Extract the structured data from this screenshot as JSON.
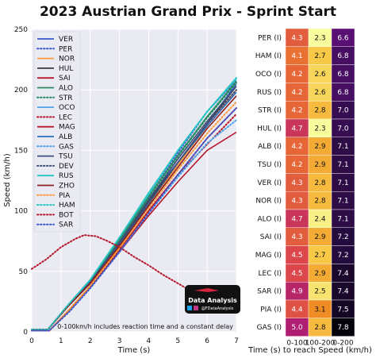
{
  "title": "2023 Austrian Grand Prix - Sprint Start",
  "chart_data": [
    {
      "type": "line",
      "xlabel": "Time (s)",
      "ylabel": "Speed (km/h)",
      "xlim": [
        0,
        7
      ],
      "ylim": [
        0,
        250
      ],
      "xticks": [
        "0",
        "1",
        "2",
        "3",
        "4",
        "5",
        "6",
        "7"
      ],
      "yticks": [
        "0",
        "50",
        "100",
        "150",
        "200",
        "250"
      ],
      "grid": true,
      "legend_position": "top-left",
      "annotation": "0-100km/h includes reaction time and a constant delay",
      "series": [
        {
          "name": "VER",
          "color": "#3a57d0",
          "dash": "solid",
          "x": [
            0,
            0.55,
            1.2,
            2,
            3,
            4,
            5,
            6,
            7
          ],
          "y": [
            2,
            2,
            20,
            42,
            75,
            110,
            140,
            172,
            205
          ]
        },
        {
          "name": "PER",
          "color": "#3a57d0",
          "dash": "dotted",
          "x": [
            0,
            0.55,
            1.2,
            2,
            3,
            4,
            5,
            6,
            7
          ],
          "y": [
            2,
            2,
            21,
            43,
            77,
            114,
            148,
            182,
            208
          ]
        },
        {
          "name": "NOR",
          "color": "#ff9a3c",
          "dash": "solid",
          "x": [
            0,
            0.6,
            1.3,
            2,
            3,
            4,
            5,
            6,
            7
          ],
          "y": [
            1,
            1,
            19,
            38,
            70,
            105,
            138,
            170,
            200
          ]
        },
        {
          "name": "HUL",
          "color": "#3a3a3a",
          "dash": "solid",
          "x": [
            0,
            0.55,
            1.2,
            2,
            3,
            4,
            5,
            6,
            7
          ],
          "y": [
            2,
            2,
            20,
            41,
            73,
            108,
            140,
            172,
            203
          ]
        },
        {
          "name": "SAI",
          "color": "#b5172b",
          "dash": "solid",
          "x": [
            0,
            0.6,
            1.3,
            2,
            3,
            4,
            5,
            6,
            7
          ],
          "y": [
            1,
            1,
            18,
            37,
            68,
            100,
            130,
            160,
            185
          ]
        },
        {
          "name": "ALO",
          "color": "#2a8a63",
          "dash": "solid",
          "x": [
            0,
            0.55,
            1.2,
            2,
            3,
            4,
            5,
            6,
            7
          ],
          "y": [
            2,
            2,
            20,
            42,
            76,
            112,
            146,
            178,
            207
          ]
        },
        {
          "name": "STR",
          "color": "#2a8a63",
          "dash": "dotted",
          "x": [
            0,
            0.55,
            1.2,
            2,
            3,
            4,
            5,
            6,
            7
          ],
          "y": [
            2,
            2,
            21,
            42,
            75,
            111,
            145,
            177,
            206
          ]
        },
        {
          "name": "OCO",
          "color": "#4fa3e8",
          "dash": "solid",
          "x": [
            0,
            0.55,
            1.2,
            2,
            3,
            4,
            5,
            6,
            7
          ],
          "y": [
            2,
            2,
            21,
            43,
            78,
            114,
            150,
            182,
            210
          ]
        },
        {
          "name": "LEC",
          "color": "#b5172b",
          "dash": "dotted",
          "x": [
            0,
            0.6,
            1.3,
            2,
            3,
            4,
            5,
            6,
            7
          ],
          "y": [
            1,
            1,
            18,
            37,
            67,
            100,
            130,
            155,
            180
          ]
        },
        {
          "name": "MAG",
          "color": "#b5172b",
          "dash": "solid",
          "x": [
            0,
            0.6,
            1.3,
            2,
            3,
            4,
            5,
            6,
            7
          ],
          "y": [
            1,
            1,
            18,
            37,
            66,
            96,
            124,
            150,
            165
          ]
        },
        {
          "name": "ALB",
          "color": "#2b6fc0",
          "dash": "solid",
          "x": [
            0,
            0.55,
            1.2,
            2,
            3,
            4,
            5,
            6,
            7
          ],
          "y": [
            2,
            2,
            20,
            40,
            72,
            106,
            140,
            170,
            198
          ]
        },
        {
          "name": "GAS",
          "color": "#4fa3e8",
          "dash": "dotted",
          "x": [
            0,
            0.6,
            1.3,
            2,
            3,
            4,
            5,
            6,
            7
          ],
          "y": [
            1,
            1,
            17,
            36,
            66,
            98,
            128,
            156,
            175
          ]
        },
        {
          "name": "TSU",
          "color": "#3d4f7a",
          "dash": "solid",
          "x": [
            0,
            0.55,
            1.2,
            2,
            3,
            4,
            5,
            6,
            7
          ],
          "y": [
            2,
            2,
            20,
            41,
            74,
            109,
            143,
            174,
            203
          ]
        },
        {
          "name": "DEV",
          "color": "#3d4f7a",
          "dash": "dotted",
          "x": [
            0,
            0.55,
            1.2,
            2,
            3,
            4,
            5,
            6,
            7
          ],
          "y": [
            2,
            2,
            20,
            40,
            72,
            106,
            140,
            172,
            200
          ]
        },
        {
          "name": "RUS",
          "color": "#24c7c1",
          "dash": "solid",
          "x": [
            0,
            0.55,
            1.2,
            2,
            3,
            4,
            5,
            6,
            7
          ],
          "y": [
            2,
            2,
            21,
            43,
            78,
            115,
            150,
            182,
            209
          ]
        },
        {
          "name": "ZHO",
          "color": "#8a1f1f",
          "dash": "solid",
          "x": [
            0,
            0.55,
            1.2,
            2,
            3,
            4,
            5,
            6,
            7
          ],
          "y": [
            2,
            2,
            20,
            40,
            71,
            104,
            136,
            168,
            195
          ]
        },
        {
          "name": "PIA",
          "color": "#ff9a3c",
          "dash": "dotted",
          "x": [
            0,
            0.6,
            1.3,
            2,
            3,
            4,
            5,
            6,
            7
          ],
          "y": [
            1,
            1,
            18,
            38,
            69,
            102,
            134,
            164,
            190
          ]
        },
        {
          "name": "HAM",
          "color": "#24c7c1",
          "dash": "dotted",
          "x": [
            0,
            0.55,
            1.2,
            2,
            3,
            4,
            5,
            6,
            7
          ],
          "y": [
            2,
            2,
            21,
            43,
            78,
            114,
            150,
            182,
            210
          ]
        },
        {
          "name": "BOT",
          "color": "#b5172b",
          "dash": "dotted",
          "x": [
            0,
            0.5,
            1,
            1.5,
            1.8,
            2.2,
            2.6,
            3,
            3.5,
            4,
            4.5,
            5,
            5.5,
            6,
            6.4
          ],
          "y": [
            52,
            60,
            70,
            77,
            80,
            79,
            75,
            70,
            62,
            55,
            47,
            40,
            33,
            27,
            25
          ]
        },
        {
          "name": "SAR",
          "color": "#3a57d0",
          "dash": "dotted",
          "x": [
            0,
            0.6,
            1.3,
            2,
            3,
            4,
            5,
            6,
            7
          ],
          "y": [
            1,
            1,
            17,
            36,
            66,
            98,
            130,
            160,
            185
          ]
        }
      ]
    },
    {
      "type": "heatmap",
      "xlabel": "Time (s) to reach Speed (km/h)",
      "columns": [
        "0-100",
        "100-200",
        "0-200"
      ],
      "rows": [
        "PER (I)",
        "HAM (I)",
        "OCO (I)",
        "RUS (I)",
        "STR (I)",
        "HUL (I)",
        "ALB (I)",
        "TSU (I)",
        "VER (I)",
        "NOR (I)",
        "ALO (I)",
        "SAI (I)",
        "MAG (I)",
        "LEC (I)",
        "SAR (I)",
        "PIA (I)",
        "GAS (I)"
      ],
      "values": [
        [
          "4.3",
          "2.3",
          "6.6"
        ],
        [
          "4.1",
          "2.7",
          "6.8"
        ],
        [
          "4.2",
          "2.6",
          "6.8"
        ],
        [
          "4.2",
          "2.6",
          "6.8"
        ],
        [
          "4.2",
          "2.8",
          "7.0"
        ],
        [
          "4.7",
          "2.3",
          "7.0"
        ],
        [
          "4.2",
          "2.9",
          "7.1"
        ],
        [
          "4.2",
          "2.9",
          "7.1"
        ],
        [
          "4.3",
          "2.8",
          "7.1"
        ],
        [
          "4.3",
          "2.8",
          "7.1"
        ],
        [
          "4.7",
          "2.4",
          "7.1"
        ],
        [
          "4.3",
          "2.9",
          "7.2"
        ],
        [
          "4.5",
          "2.7",
          "7.2"
        ],
        [
          "4.5",
          "2.9",
          "7.4"
        ],
        [
          "4.9",
          "2.5",
          "7.4"
        ],
        [
          "4.4",
          "3.1",
          "7.5"
        ],
        [
          "5.0",
          "2.8",
          "7.8"
        ]
      ]
    }
  ],
  "badge": {
    "title": "Data Analysis",
    "handle": "@FDataAnalysis"
  }
}
